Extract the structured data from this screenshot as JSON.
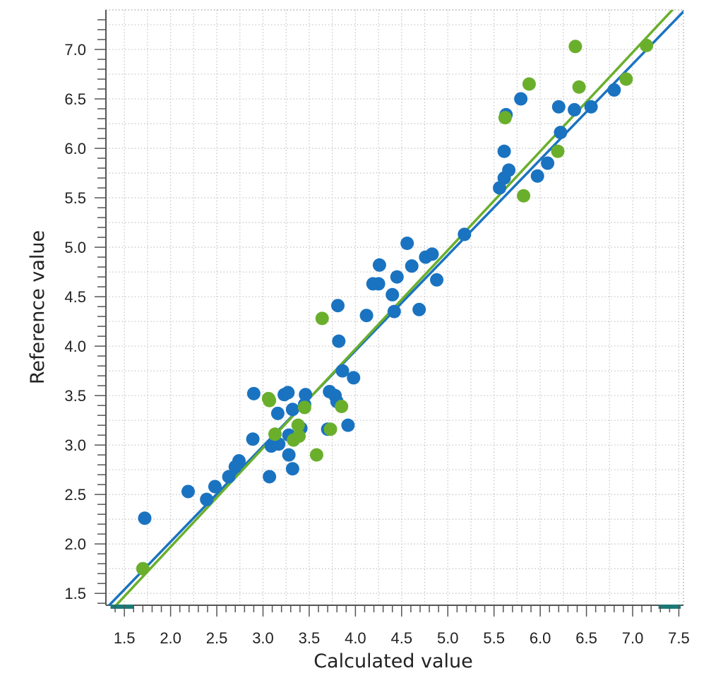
{
  "chart_data": {
    "type": "scatter",
    "title": "",
    "xlabel": "Calculated value",
    "ylabel": "Reference value",
    "xlim": [
      1.3,
      7.55
    ],
    "ylim": [
      1.38,
      7.4
    ],
    "x_ticks": [
      "1.5",
      "2.0",
      "2.5",
      "3.0",
      "3.5",
      "4.0",
      "4.5",
      "5.0",
      "5.5",
      "6.0",
      "6.5",
      "7.0",
      "7.5"
    ],
    "y_ticks": [
      "1.5",
      "2.0",
      "2.5",
      "3.0",
      "3.5",
      "4.0",
      "4.5",
      "5.0",
      "5.5",
      "6.0",
      "6.5",
      "7.0"
    ],
    "grid": true,
    "legend": "none",
    "colors": {
      "series_1": "#1a73c0",
      "series_2": "#6aaf2c",
      "range_marker": "#1a7a78",
      "grid": "#c8c8c8"
    },
    "series": [
      {
        "color": "#1a73c0",
        "fit_line": {
          "slope": 0.966,
          "intercept": 0.09
        },
        "points": [
          [
            1.72,
            2.26
          ],
          [
            2.19,
            2.53
          ],
          [
            2.39,
            2.45
          ],
          [
            2.48,
            2.58
          ],
          [
            2.63,
            2.68
          ],
          [
            2.7,
            2.78
          ],
          [
            2.74,
            2.84
          ],
          [
            2.89,
            3.06
          ],
          [
            2.9,
            3.52
          ],
          [
            3.07,
            2.68
          ],
          [
            3.09,
            2.99
          ],
          [
            3.16,
            3.32
          ],
          [
            3.17,
            3.01
          ],
          [
            3.23,
            3.51
          ],
          [
            3.27,
            3.53
          ],
          [
            3.28,
            3.1
          ],
          [
            3.28,
            2.9
          ],
          [
            3.32,
            2.76
          ],
          [
            3.32,
            3.36
          ],
          [
            3.41,
            3.17
          ],
          [
            3.45,
            3.41
          ],
          [
            3.46,
            3.51
          ],
          [
            3.7,
            3.16
          ],
          [
            3.72,
            3.54
          ],
          [
            3.78,
            3.5
          ],
          [
            3.8,
            3.44
          ],
          [
            3.81,
            4.41
          ],
          [
            3.82,
            4.05
          ],
          [
            3.86,
            3.75
          ],
          [
            3.92,
            3.2
          ],
          [
            3.98,
            3.68
          ],
          [
            4.12,
            4.31
          ],
          [
            4.19,
            4.63
          ],
          [
            4.25,
            4.63
          ],
          [
            4.26,
            4.82
          ],
          [
            4.4,
            4.52
          ],
          [
            4.42,
            4.35
          ],
          [
            4.45,
            4.7
          ],
          [
            4.56,
            5.04
          ],
          [
            4.61,
            4.81
          ],
          [
            4.69,
            4.37
          ],
          [
            4.76,
            4.9
          ],
          [
            4.83,
            4.93
          ],
          [
            4.88,
            4.67
          ],
          [
            5.18,
            5.13
          ],
          [
            5.56,
            5.6
          ],
          [
            5.61,
            5.7
          ],
          [
            5.61,
            5.97
          ],
          [
            5.63,
            6.34
          ],
          [
            5.66,
            5.78
          ],
          [
            5.79,
            6.5
          ],
          [
            5.97,
            5.72
          ],
          [
            6.08,
            5.85
          ],
          [
            6.2,
            6.42
          ],
          [
            6.22,
            6.16
          ],
          [
            6.37,
            6.39
          ],
          [
            6.55,
            6.42
          ],
          [
            6.8,
            6.59
          ]
        ]
      },
      {
        "color": "#6aaf2c",
        "fit_line": {
          "slope": 1.0,
          "intercept": -0.03
        },
        "points": [
          [
            1.7,
            1.75
          ],
          [
            3.06,
            3.47
          ],
          [
            3.07,
            3.45
          ],
          [
            3.13,
            3.11
          ],
          [
            3.33,
            3.05
          ],
          [
            3.38,
            3.2
          ],
          [
            3.39,
            3.09
          ],
          [
            3.45,
            3.38
          ],
          [
            3.58,
            2.9
          ],
          [
            3.64,
            4.28
          ],
          [
            3.73,
            3.16
          ],
          [
            3.85,
            3.39
          ],
          [
            5.62,
            6.31
          ],
          [
            5.82,
            5.52
          ],
          [
            5.88,
            6.65
          ],
          [
            6.19,
            5.97
          ],
          [
            6.38,
            7.03
          ],
          [
            6.42,
            6.62
          ],
          [
            6.93,
            6.7
          ],
          [
            7.15,
            7.04
          ]
        ]
      }
    ],
    "range_markers": [
      {
        "from": 1.35,
        "to": 1.6
      },
      {
        "from": 7.28,
        "to": 7.52
      }
    ]
  }
}
